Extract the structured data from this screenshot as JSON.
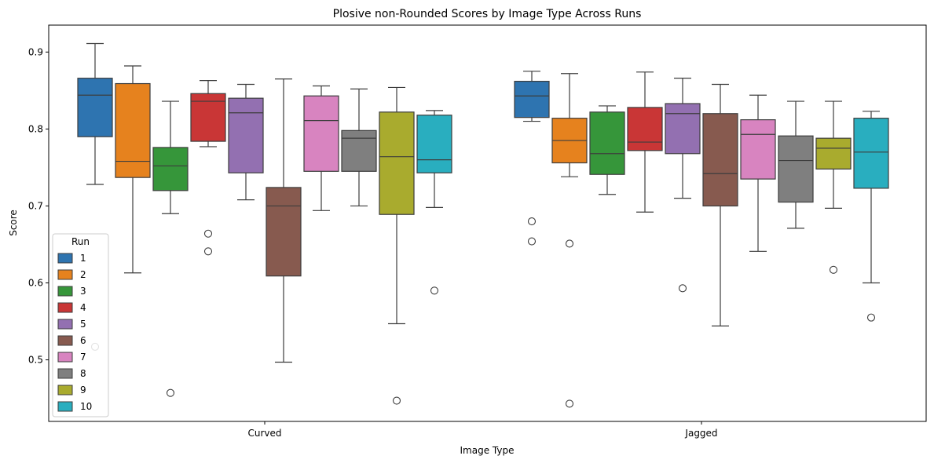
{
  "chart_data": {
    "type": "box",
    "title": "Plosive non-Rounded Scores by Image Type Across Runs",
    "xlabel": "Image Type",
    "ylabel": "Score",
    "ylim": [
      0.42,
      0.935
    ],
    "yticks": [
      "0.5",
      "0.6",
      "0.7",
      "0.8",
      "0.9"
    ],
    "grid": false,
    "categories": [
      "Curved",
      "Jagged"
    ],
    "legend": {
      "title": "Run",
      "position": "lower-left"
    },
    "series": [
      {
        "name": "1",
        "color": "#2e74b0",
        "boxes": [
          {
            "whislo": 0.728,
            "q1": 0.79,
            "med": 0.844,
            "q3": 0.866,
            "whishi": 0.911,
            "fliers": [
              0.517
            ]
          },
          {
            "whislo": 0.81,
            "q1": 0.815,
            "med": 0.843,
            "q3": 0.862,
            "whishi": 0.875,
            "fliers": [
              0.68,
              0.654
            ]
          }
        ]
      },
      {
        "name": "2",
        "color": "#e6821e",
        "boxes": [
          {
            "whislo": 0.613,
            "q1": 0.737,
            "med": 0.758,
            "q3": 0.859,
            "whishi": 0.882,
            "fliers": []
          },
          {
            "whislo": 0.738,
            "q1": 0.756,
            "med": 0.785,
            "q3": 0.814,
            "whishi": 0.872,
            "fliers": [
              0.651,
              0.443
            ]
          }
        ]
      },
      {
        "name": "3",
        "color": "#36963a",
        "boxes": [
          {
            "whislo": 0.69,
            "q1": 0.72,
            "med": 0.752,
            "q3": 0.776,
            "whishi": 0.836,
            "fliers": [
              0.457
            ]
          },
          {
            "whislo": 0.715,
            "q1": 0.741,
            "med": 0.768,
            "q3": 0.822,
            "whishi": 0.83,
            "fliers": []
          }
        ]
      },
      {
        "name": "4",
        "color": "#c93636",
        "boxes": [
          {
            "whislo": 0.777,
            "q1": 0.784,
            "med": 0.836,
            "q3": 0.846,
            "whishi": 0.863,
            "fliers": [
              0.664,
              0.641
            ]
          },
          {
            "whislo": 0.692,
            "q1": 0.772,
            "med": 0.783,
            "q3": 0.828,
            "whishi": 0.874,
            "fliers": []
          }
        ]
      },
      {
        "name": "5",
        "color": "#9370b1",
        "boxes": [
          {
            "whislo": 0.708,
            "q1": 0.743,
            "med": 0.821,
            "q3": 0.84,
            "whishi": 0.858,
            "fliers": []
          },
          {
            "whislo": 0.71,
            "q1": 0.768,
            "med": 0.82,
            "q3": 0.833,
            "whishi": 0.866,
            "fliers": [
              0.593
            ]
          }
        ]
      },
      {
        "name": "6",
        "color": "#875a4f",
        "boxes": [
          {
            "whislo": 0.497,
            "q1": 0.609,
            "med": 0.7,
            "q3": 0.724,
            "whishi": 0.865,
            "fliers": []
          },
          {
            "whislo": 0.544,
            "q1": 0.7,
            "med": 0.742,
            "q3": 0.82,
            "whishi": 0.858,
            "fliers": []
          }
        ]
      },
      {
        "name": "7",
        "color": "#d884c0",
        "boxes": [
          {
            "whislo": 0.694,
            "q1": 0.745,
            "med": 0.811,
            "q3": 0.843,
            "whishi": 0.856,
            "fliers": []
          },
          {
            "whislo": 0.641,
            "q1": 0.735,
            "med": 0.793,
            "q3": 0.812,
            "whishi": 0.844,
            "fliers": []
          }
        ]
      },
      {
        "name": "8",
        "color": "#7f7f7f",
        "boxes": [
          {
            "whislo": 0.7,
            "q1": 0.745,
            "med": 0.788,
            "q3": 0.798,
            "whishi": 0.852,
            "fliers": []
          },
          {
            "whislo": 0.671,
            "q1": 0.705,
            "med": 0.759,
            "q3": 0.791,
            "whishi": 0.836,
            "fliers": []
          }
        ]
      },
      {
        "name": "9",
        "color": "#a9ab2e",
        "boxes": [
          {
            "whislo": 0.547,
            "q1": 0.689,
            "med": 0.764,
            "q3": 0.822,
            "whishi": 0.854,
            "fliers": [
              0.447
            ]
          },
          {
            "whislo": 0.697,
            "q1": 0.748,
            "med": 0.775,
            "q3": 0.788,
            "whishi": 0.836,
            "fliers": [
              0.617
            ]
          }
        ]
      },
      {
        "name": "10",
        "color": "#29aebf",
        "boxes": [
          {
            "whislo": 0.698,
            "q1": 0.743,
            "med": 0.76,
            "q3": 0.818,
            "whishi": 0.824,
            "fliers": [
              0.59
            ]
          },
          {
            "whislo": 0.6,
            "q1": 0.723,
            "med": 0.77,
            "q3": 0.814,
            "whishi": 0.823,
            "fliers": [
              0.555
            ]
          }
        ]
      }
    ]
  }
}
